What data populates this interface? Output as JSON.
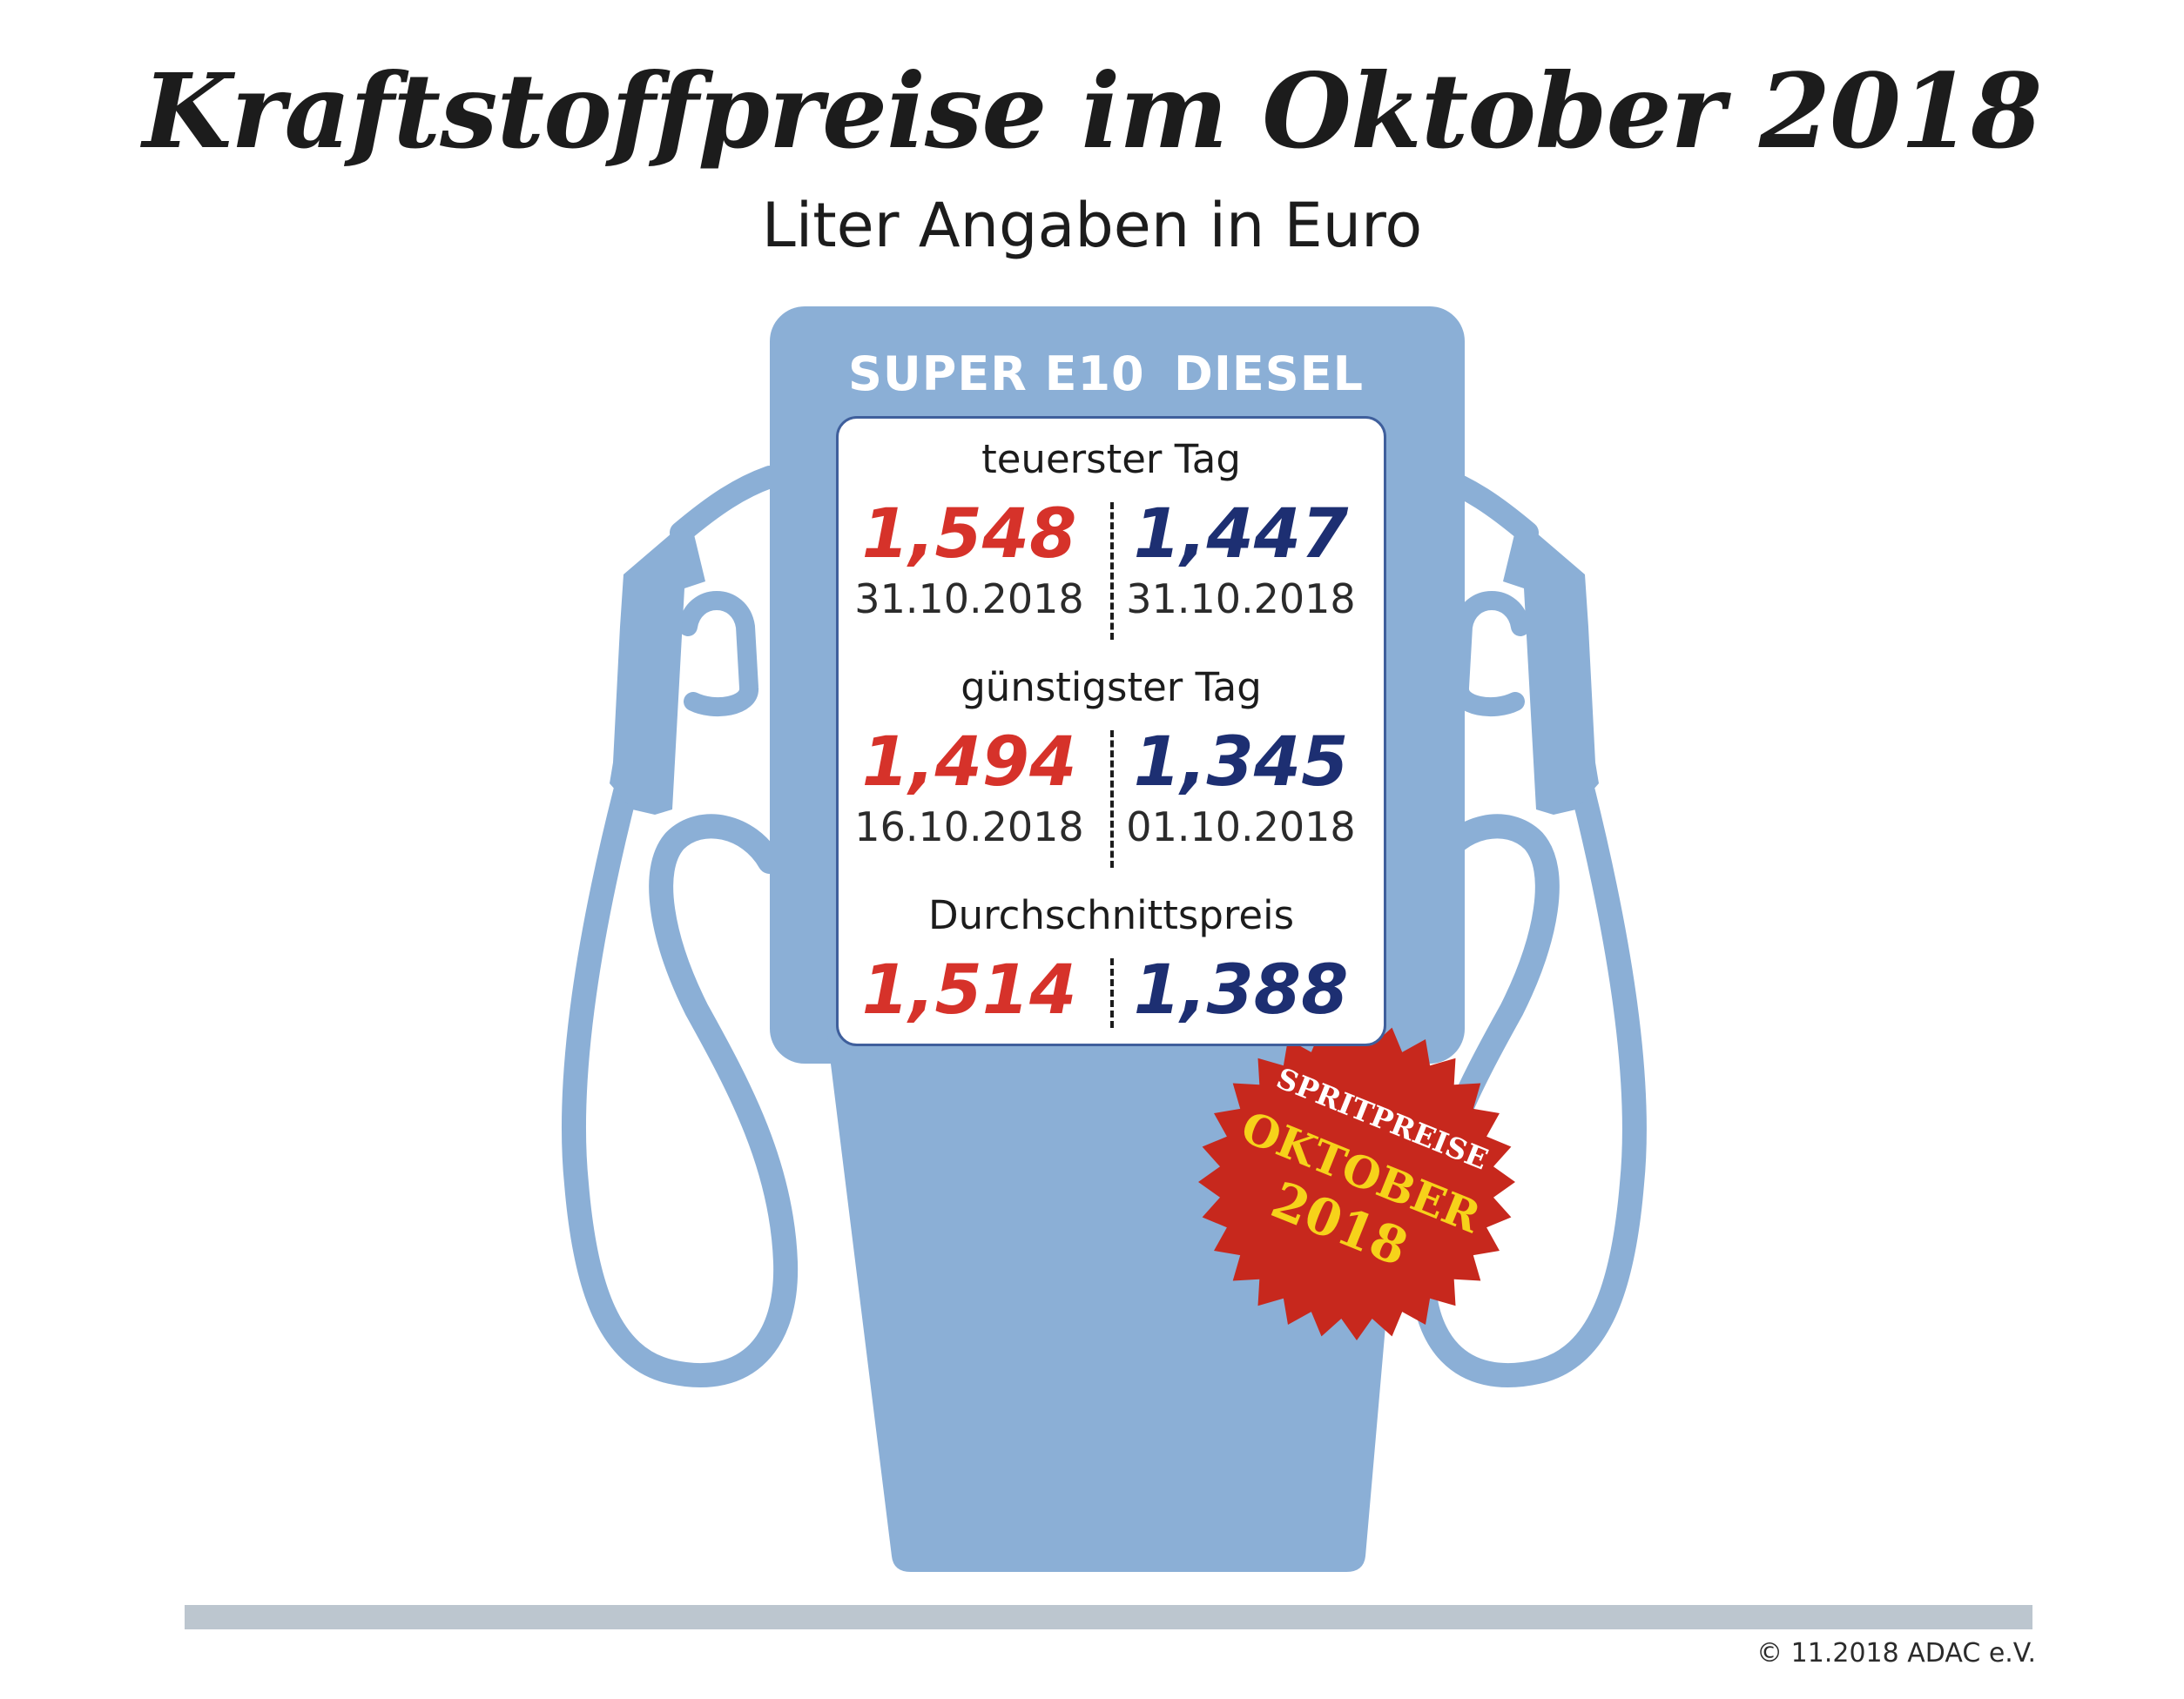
{
  "header": {
    "title": "Kraftstoffpreise im Oktober 2018",
    "subtitle": "Liter Angaben in Euro"
  },
  "columns": {
    "e10": "SUPER E10",
    "diesel": "DIESEL"
  },
  "rows": [
    {
      "label": "teuerster Tag",
      "e10_price": "1,548",
      "e10_date": "31.10.2018",
      "diesel_price": "1,447",
      "diesel_date": "31.10.2018"
    },
    {
      "label": "günstigster Tag",
      "e10_price": "1,494",
      "e10_date": "16.10.2018",
      "diesel_price": "1,345",
      "diesel_date": "01.10.2018"
    },
    {
      "label": "Durchschnittspreis",
      "e10_price": "1,514",
      "diesel_price": "1,388"
    }
  ],
  "badge": {
    "line1": "SPRITPREISE",
    "line2": "OKTOBER",
    "line3": "2018"
  },
  "footer": {
    "copyright": "© 11.2018  ADAC e.V."
  },
  "colors": {
    "pump": "#8bafd6",
    "e10_price": "#d6322a",
    "diesel_price": "#1d2f72",
    "badge": "#c7281d",
    "badge_accent": "#f6d21a",
    "footer_bar": "#bcc6cf"
  },
  "icons": [
    "fuel-pump-icon",
    "fuel-nozzle-icon",
    "starburst-badge-icon"
  ]
}
